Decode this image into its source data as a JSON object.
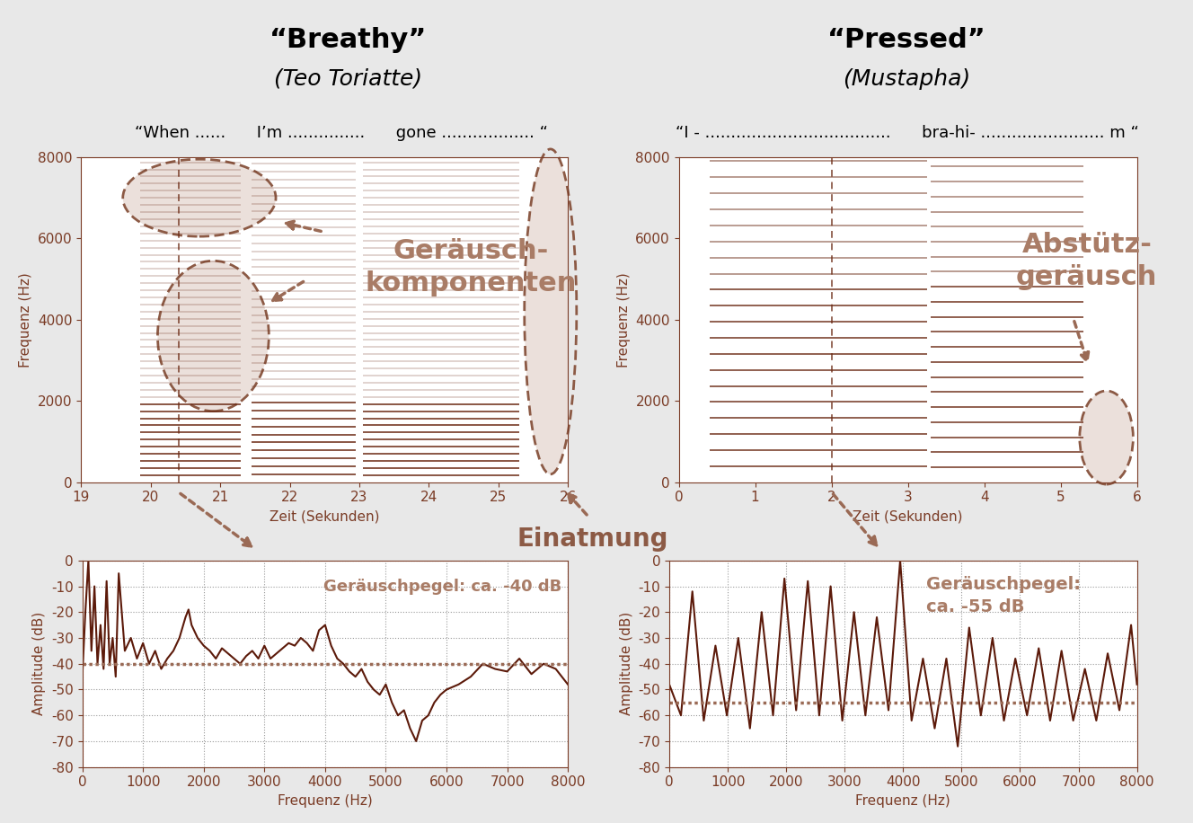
{
  "chart_data": [
    {
      "type": "spectrogram",
      "title": "“Breathy”",
      "subtitle": "(Teo Toriatte)",
      "lyrics": "“When ......      I’m ...............      gone .................. “",
      "xlabel": "Zeit (Sekunden)",
      "ylabel": "Frequenz (Hz)",
      "xlim": [
        19,
        26
      ],
      "xticks": [
        19,
        20,
        21,
        22,
        23,
        24,
        25,
        26
      ],
      "ylim": [
        0,
        8000
      ],
      "yticks": [
        0,
        2000,
        4000,
        6000,
        8000
      ],
      "color": "#6b2a14",
      "slice_time": 20.4,
      "notes": [
        {
          "start": 19.85,
          "end": 21.3,
          "f0": 175
        },
        {
          "start": 21.45,
          "end": 22.95,
          "f0": 196
        },
        {
          "start": 23.05,
          "end": 25.3,
          "f0": 175
        }
      ],
      "annotations": [
        {
          "text": "Geräusch-\nkomponenten"
        },
        {
          "text": "Einatmung"
        }
      ]
    },
    {
      "type": "spectrogram",
      "title": "“Pressed”",
      "subtitle": "(Mustapha)",
      "lyrics": "“I - ....................................      bra-hi- ........................ m “",
      "xlabel": "Zeit (Sekunden)",
      "ylabel": "Frequenz (Hz)",
      "xlim": [
        0,
        6
      ],
      "xticks": [
        0,
        1,
        2,
        3,
        4,
        5,
        6
      ],
      "ylim": [
        0,
        8000
      ],
      "yticks": [
        0,
        2000,
        4000,
        6000,
        8000
      ],
      "color": "#6b2a14",
      "slice_time": 2,
      "notes": [
        {
          "start": 0.4,
          "end": 3.25,
          "f0": 395
        },
        {
          "start": 3.3,
          "end": 5.3,
          "f0": 370
        }
      ],
      "annotations": [
        {
          "text": "Abstütz-\ngeräusch"
        }
      ]
    },
    {
      "type": "line",
      "xlabel": "Frequenz (Hz)",
      "ylabel": "Amplitude (dB)",
      "x": [
        0,
        50,
        100,
        150,
        200,
        250,
        300,
        350,
        400,
        450,
        500,
        550,
        600,
        700,
        800,
        900,
        1000,
        1100,
        1200,
        1300,
        1400,
        1500,
        1600,
        1700,
        1750,
        1800,
        1900,
        2000,
        2100,
        2200,
        2300,
        2400,
        2500,
        2600,
        2700,
        2800,
        2900,
        3000,
        3100,
        3200,
        3300,
        3400,
        3500,
        3600,
        3700,
        3800,
        3900,
        4000,
        4100,
        4200,
        4300,
        4400,
        4500,
        4600,
        4700,
        4800,
        4900,
        5000,
        5100,
        5200,
        5300,
        5400,
        5500,
        5600,
        5700,
        5800,
        5900,
        6000,
        6200,
        6400,
        6600,
        6800,
        7000,
        7200,
        7400,
        7600,
        7800,
        8000
      ],
      "values": [
        -45,
        -20,
        0,
        -35,
        -10,
        -40,
        -25,
        -42,
        -8,
        -40,
        -30,
        -45,
        -5,
        -35,
        -30,
        -38,
        -32,
        -40,
        -35,
        -42,
        -38,
        -35,
        -30,
        -22,
        -19,
        -25,
        -30,
        -33,
        -35,
        -38,
        -34,
        -36,
        -38,
        -40,
        -37,
        -35,
        -38,
        -33,
        -38,
        -36,
        -34,
        -32,
        -33,
        -30,
        -32,
        -35,
        -27,
        -25,
        -33,
        -38,
        -40,
        -43,
        -45,
        -42,
        -47,
        -50,
        -52,
        -48,
        -55,
        -60,
        -58,
        -65,
        -70,
        -62,
        -60,
        -55,
        -52,
        -50,
        -48,
        -45,
        -40,
        -42,
        -43,
        -38,
        -44,
        -40,
        -42,
        -48
      ],
      "xlim": [
        0,
        8000
      ],
      "xticks": [
        0,
        1000,
        2000,
        3000,
        4000,
        5000,
        6000,
        7000,
        8000
      ],
      "ylim": [
        -80,
        0
      ],
      "yticks": [
        -80,
        -70,
        -60,
        -50,
        -40,
        -30,
        -20,
        -10,
        0
      ],
      "grid": true,
      "color": "#5c1a0a",
      "noise_level": -40,
      "annotations": [
        {
          "text": "Geräuschpegel: ca. -40 dB"
        }
      ]
    },
    {
      "type": "line",
      "xlabel": "Frequenz (Hz)",
      "ylabel": "Amplitude (dB)",
      "x": [
        0,
        200,
        395,
        590,
        790,
        985,
        1180,
        1380,
        1580,
        1775,
        1970,
        2170,
        2370,
        2565,
        2760,
        2960,
        3160,
        3355,
        3550,
        3750,
        3950,
        4145,
        4340,
        4540,
        4740,
        4935,
        5130,
        5330,
        5530,
        5725,
        5920,
        6120,
        6320,
        6515,
        6710,
        6910,
        7110,
        7305,
        7500,
        7700,
        7900,
        8000
      ],
      "values": [
        -48,
        -60,
        -12,
        -62,
        -33,
        -60,
        -30,
        -65,
        -20,
        -60,
        -7,
        -58,
        -8,
        -60,
        -10,
        -62,
        -20,
        -60,
        -22,
        -58,
        0,
        -62,
        -38,
        -65,
        -38,
        -72,
        -26,
        -60,
        -30,
        -62,
        -38,
        -60,
        -34,
        -62,
        -35,
        -62,
        -42,
        -62,
        -36,
        -58,
        -25,
        -48
      ],
      "xlim": [
        0,
        8000
      ],
      "xticks": [
        0,
        1000,
        2000,
        3000,
        4000,
        5000,
        6000,
        7000,
        8000
      ],
      "ylim": [
        -80,
        0
      ],
      "yticks": [
        -80,
        -70,
        -60,
        -50,
        -40,
        -30,
        -20,
        -10,
        0
      ],
      "grid": true,
      "color": "#5c1a0a",
      "noise_level": -55,
      "annotations": [
        {
          "text": "Geräuschpegel:\nca. -55 dB"
        }
      ]
    }
  ]
}
